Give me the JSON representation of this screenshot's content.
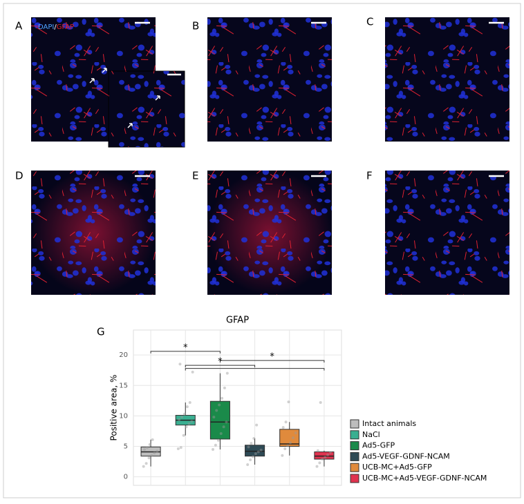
{
  "panels": [
    {
      "label": "A",
      "legend": {
        "dapi": "DAPI",
        "sep": "/",
        "gfap": "GFAP"
      }
    },
    {
      "label": "B"
    },
    {
      "label": "C"
    },
    {
      "label": "D"
    },
    {
      "label": "E"
    },
    {
      "label": "F"
    }
  ],
  "chart_data": {
    "type": "box",
    "panel_label": "G",
    "title": "GFAP",
    "ylabel": "Positive area, %",
    "ylim": [
      -1.4,
      24.1
    ],
    "yticks": [
      0,
      5,
      10,
      15,
      20
    ],
    "grid": true,
    "legend": "right",
    "series": [
      {
        "name": "Intact animals",
        "color": "#bdbdbd",
        "min": 1.7,
        "q1": 3.4,
        "median": 4.1,
        "q3": 4.9,
        "max": 6.1,
        "points": [
          1.7,
          2.2,
          3.1,
          3.5,
          3.9,
          4.2,
          4.5,
          4.8,
          5.3,
          6.1
        ]
      },
      {
        "name": "NaCl",
        "color": "#3aaf91",
        "min": 6.8,
        "q1": 8.5,
        "median": 9.3,
        "q3": 10.1,
        "max": 12.2,
        "points": [
          4.6,
          4.8,
          6.8,
          8.2,
          8.7,
          9.1,
          9.4,
          9.8,
          10.3,
          11.5,
          12.2,
          17.2,
          18.5
        ]
      },
      {
        "name": "Ad5-GFP",
        "color": "#1a8a4a",
        "min": 4.5,
        "q1": 6.2,
        "median": 9.0,
        "q3": 12.4,
        "max": 17.0,
        "points": [
          4.5,
          5.2,
          6.0,
          7.1,
          8.2,
          9.0,
          9.8,
          10.9,
          11.8,
          12.9,
          14.6,
          17.0
        ]
      },
      {
        "name": "Ad5-VEGF-GDNF-NCAM",
        "color": "#2e4a55",
        "min": 2.0,
        "q1": 3.4,
        "median": 4.2,
        "q3": 5.2,
        "max": 6.3,
        "points": [
          2.0,
          2.8,
          3.3,
          3.8,
          4.1,
          4.4,
          4.9,
          5.5,
          6.3,
          8.5
        ]
      },
      {
        "name": "UCB-MC+Ad5-GFP",
        "color": "#e08a3c",
        "min": 3.5,
        "q1": 5.0,
        "median": 5.4,
        "q3": 7.8,
        "max": 9.0,
        "points": [
          3.5,
          4.6,
          5.1,
          5.6,
          6.4,
          7.2,
          8.1,
          9.0,
          12.3
        ]
      },
      {
        "name": "UCB-MC+Ad5-VEGF-GDNF-NCAM",
        "color": "#e0334f",
        "min": 1.7,
        "q1": 2.9,
        "median": 3.4,
        "q3": 4.1,
        "max": 4.3,
        "points": [
          1.7,
          2.3,
          2.9,
          3.2,
          3.6,
          4.0,
          4.3,
          12.2
        ]
      }
    ],
    "brackets": [
      {
        "from": 0,
        "to": 2,
        "y": 20.6,
        "label": "*"
      },
      {
        "from": 2,
        "to": 5,
        "y": 19.1,
        "label": "*"
      },
      {
        "from": 1,
        "to": 3,
        "y": 18.3,
        "label": "*"
      },
      {
        "from": 1,
        "to": 5,
        "y": 17.8
      }
    ]
  }
}
